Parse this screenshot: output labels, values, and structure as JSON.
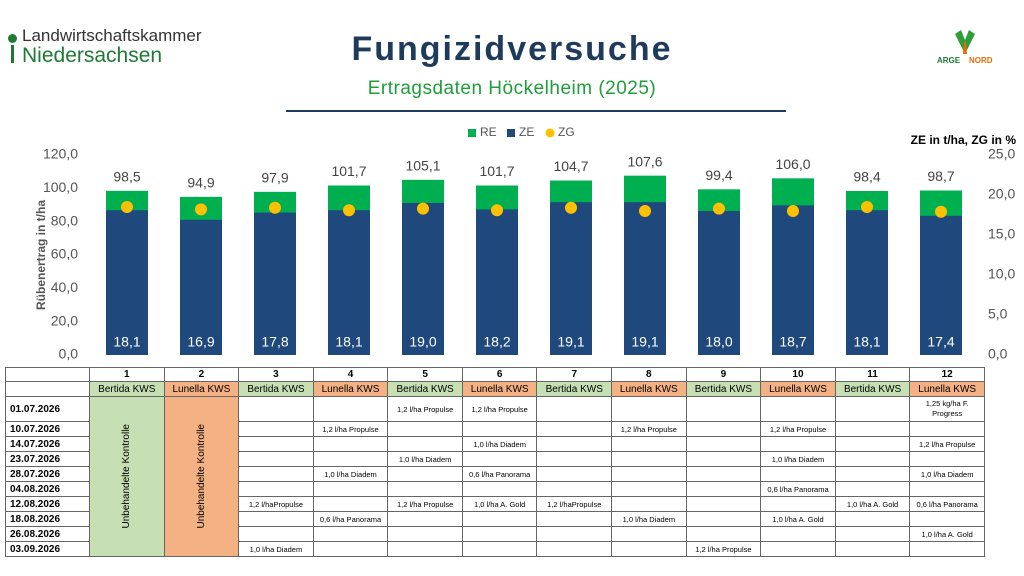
{
  "header": {
    "logo_line1": "Landwirtschaftskammer",
    "logo_line2": "Niedersachsen",
    "title": "Fungizidversuche",
    "subtitle": "Ertragsdaten Höckelheim (2025)",
    "partner_left": "ARGE",
    "partner_right": "NORD"
  },
  "chart_data": {
    "type": "bar",
    "y_label": "Rübenertrag in t/ha",
    "y2_label": "ZE in t/ha, ZG in %",
    "categories": [
      null,
      null,
      null,
      null,
      null,
      null,
      null,
      null,
      null,
      null,
      null,
      null
    ],
    "series": [
      {
        "name": "RE",
        "type": "bar",
        "color": "#00b050",
        "values": [
          98.5,
          94.9,
          97.9,
          101.7,
          105.1,
          101.7,
          104.7,
          107.6,
          99.4,
          106.0,
          98.4,
          98.7
        ],
        "value_labels": [
          "98,5",
          "94,9",
          "97,9",
          "101,7",
          "105,1",
          "101,7",
          "104,7",
          "107,6",
          "99,4",
          "106,0",
          "98,4",
          "98,7"
        ]
      },
      {
        "name": "ZE",
        "type": "bar",
        "axis": "y2",
        "color": "#1f497d",
        "values": [
          18.1,
          16.9,
          17.8,
          18.1,
          19.0,
          18.2,
          19.1,
          19.1,
          18.0,
          18.7,
          18.1,
          17.4
        ],
        "value_labels": [
          "18,1",
          "16,9",
          "17,8",
          "18,1",
          "19,0",
          "18,2",
          "19,1",
          "19,1",
          "18,0",
          "18,7",
          "18,1",
          "17,4"
        ]
      },
      {
        "name": "ZG",
        "type": "scatter",
        "axis": "y2",
        "color": "#ffc000",
        "values": [
          18.5,
          18.2,
          18.4,
          18.1,
          18.3,
          18.1,
          18.4,
          18.0,
          18.3,
          18.0,
          18.5,
          17.9
        ]
      }
    ],
    "ylim": [
      0,
      120
    ],
    "yticks": [
      {
        "value": 0,
        "label": "0,0"
      },
      {
        "value": 20,
        "label": "20,0"
      },
      {
        "value": 40,
        "label": "40,0"
      },
      {
        "value": 60,
        "label": "60,0"
      },
      {
        "value": 80,
        "label": "80,0"
      },
      {
        "value": 100,
        "label": "100,0"
      },
      {
        "value": 120,
        "label": "120,0"
      }
    ],
    "y2lim": [
      0,
      25
    ],
    "y2ticks": [
      {
        "value": 0,
        "label": "0,0"
      },
      {
        "value": 5,
        "label": "5,0"
      },
      {
        "value": 10,
        "label": "10,0"
      },
      {
        "value": 15,
        "label": "15,0"
      },
      {
        "value": 20,
        "label": "20,0"
      },
      {
        "value": 25,
        "label": "25,0"
      }
    ],
    "legend": "top"
  },
  "table": {
    "columns": [
      "1",
      "2",
      "3",
      "4",
      "5",
      "6",
      "7",
      "8",
      "9",
      "10",
      "11",
      "12"
    ],
    "varieties": [
      "Bertida KWS",
      "Lunella KWS",
      "Bertida KWS",
      "Lunella KWS",
      "Bertida KWS",
      "Lunella KWS",
      "Bertida KWS",
      "Lunella KWS",
      "Bertida KWS",
      "Lunella KWS",
      "Bertida KWS",
      "Lunella KWS"
    ],
    "control_labels": [
      "Unbehandelte Kontrolle",
      "Unbehandelte Kontrolle"
    ],
    "rows": [
      {
        "date": "01.07.2026",
        "cells": [
          null,
          null,
          "1,2 l/ha Propulse",
          "1,2 l/ha Propulse",
          null,
          null,
          null,
          null,
          null,
          "1,25 kg/ha F. Progress"
        ]
      },
      {
        "date": "10.07.2026",
        "cells": [
          null,
          "1,2 l/ha Propulse",
          null,
          null,
          null,
          "1,2 l/ha Propulse",
          null,
          "1,2 l/ha Propulse",
          null,
          null
        ]
      },
      {
        "date": "14.07.2026",
        "cells": [
          null,
          null,
          null,
          "1,0 l/ha Diadem",
          null,
          null,
          null,
          null,
          null,
          "1,2 l/ha Propulse"
        ]
      },
      {
        "date": "23.07.2026",
        "cells": [
          null,
          null,
          "1,0 l/ha Diadem",
          null,
          null,
          null,
          null,
          "1,0 l/ha Diadem",
          null,
          null
        ]
      },
      {
        "date": "28.07.2026",
        "cells": [
          null,
          "1,0 l/ha Diadem",
          null,
          "0,6 l/ha Panorama",
          null,
          null,
          null,
          null,
          null,
          "1,0 l/ha Diadem"
        ]
      },
      {
        "date": "04.08.2026",
        "cells": [
          null,
          null,
          null,
          null,
          null,
          null,
          null,
          "0,6 l/ha Panorama",
          null,
          null
        ]
      },
      {
        "date": "12.08.2026",
        "cells": [
          "1,2 l/haPropulse",
          null,
          "1,2 l/ha Propulse",
          "1,0 l/ha A. Gold",
          "1,2 l/haPropulse",
          null,
          null,
          null,
          "1,0 l/ha A. Gold",
          "0,6 l/ha Panorama"
        ]
      },
      {
        "date": "18.08.2026",
        "cells": [
          null,
          "0,6 l/ha Panorama",
          null,
          null,
          null,
          "1,0 l/ha Diadem",
          null,
          "1,0 l/ha A. Gold",
          null,
          null
        ]
      },
      {
        "date": "26.08.2026",
        "cells": [
          null,
          null,
          null,
          null,
          null,
          null,
          null,
          null,
          null,
          "1,0 l/ha A. Gold"
        ]
      },
      {
        "date": "03.09.2026",
        "cells": [
          "1,0 l/ha Diadem",
          null,
          null,
          null,
          null,
          null,
          "1,2 l/ha Propulse",
          null,
          null,
          null
        ]
      }
    ]
  }
}
